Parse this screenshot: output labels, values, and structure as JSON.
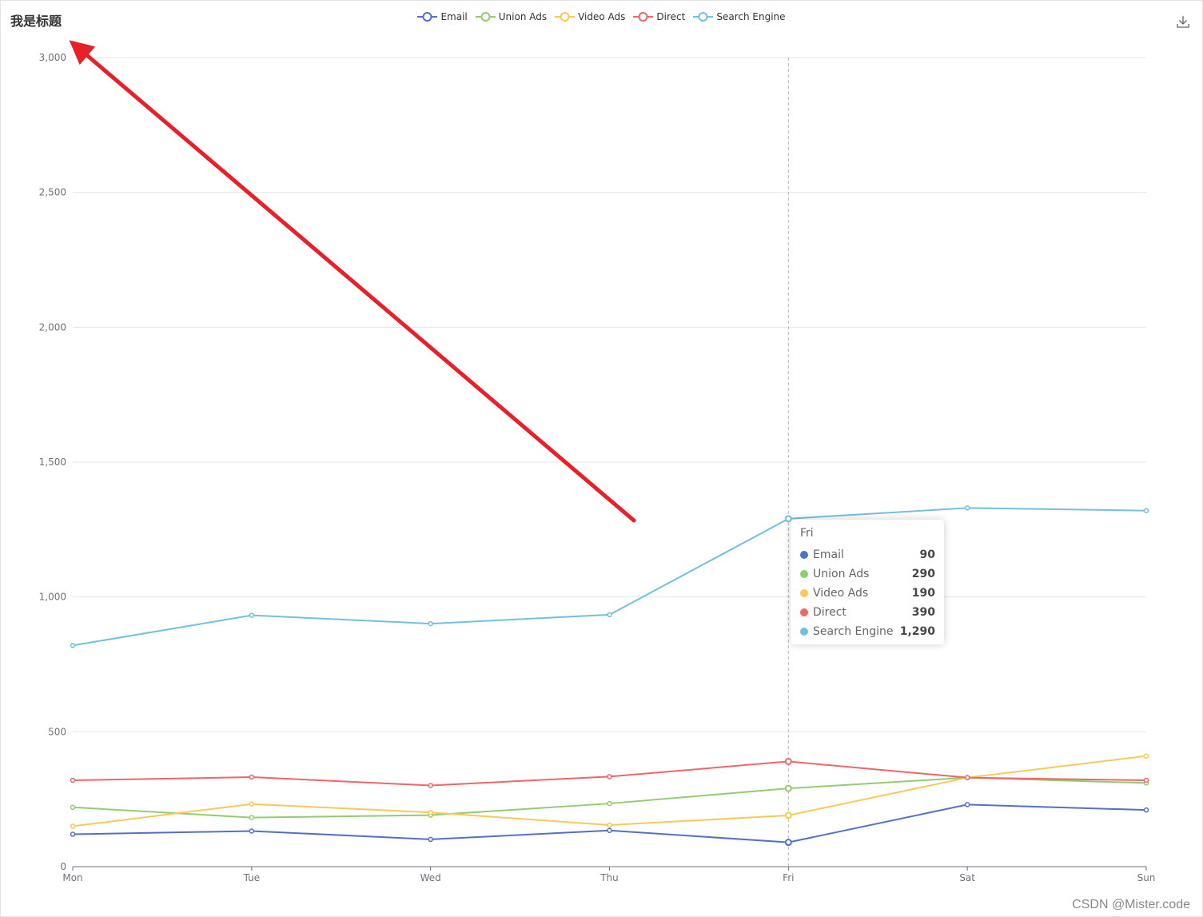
{
  "title": "我是标题",
  "watermark": "CSDN @Mister.code",
  "toolbar": {
    "save_icon": "download-icon"
  },
  "chart_data": {
    "type": "line",
    "categories": [
      "Mon",
      "Tue",
      "Wed",
      "Thu",
      "Fri",
      "Sat",
      "Sun"
    ],
    "ylim": [
      0,
      3000
    ],
    "yticks": [
      0,
      500,
      1000,
      1500,
      2000,
      2500,
      3000
    ],
    "ytick_labels": [
      "0",
      "500",
      "1,000",
      "1,500",
      "2,000",
      "2,500",
      "3,000"
    ],
    "grid": true,
    "legend_position": "top-center",
    "series": [
      {
        "name": "Email",
        "color": "#5470c6",
        "values": [
          120,
          132,
          101,
          134,
          90,
          230,
          210
        ]
      },
      {
        "name": "Union Ads",
        "color": "#91cc75",
        "values": [
          220,
          182,
          191,
          234,
          290,
          330,
          310
        ]
      },
      {
        "name": "Video Ads",
        "color": "#fac858",
        "values": [
          150,
          232,
          201,
          154,
          190,
          330,
          410
        ]
      },
      {
        "name": "Direct",
        "color": "#ee6666",
        "values": [
          320,
          332,
          301,
          334,
          390,
          330,
          320
        ]
      },
      {
        "name": "Search Engine",
        "color": "#73c0de",
        "values": [
          820,
          932,
          901,
          934,
          1290,
          1330,
          1320
        ]
      }
    ],
    "tooltip": {
      "category": "Fri",
      "rows": [
        {
          "name": "Email",
          "value": "90"
        },
        {
          "name": "Union Ads",
          "value": "290"
        },
        {
          "name": "Video Ads",
          "value": "190"
        },
        {
          "name": "Direct",
          "value": "390"
        },
        {
          "name": "Search Engine",
          "value": "1,290"
        }
      ]
    }
  }
}
